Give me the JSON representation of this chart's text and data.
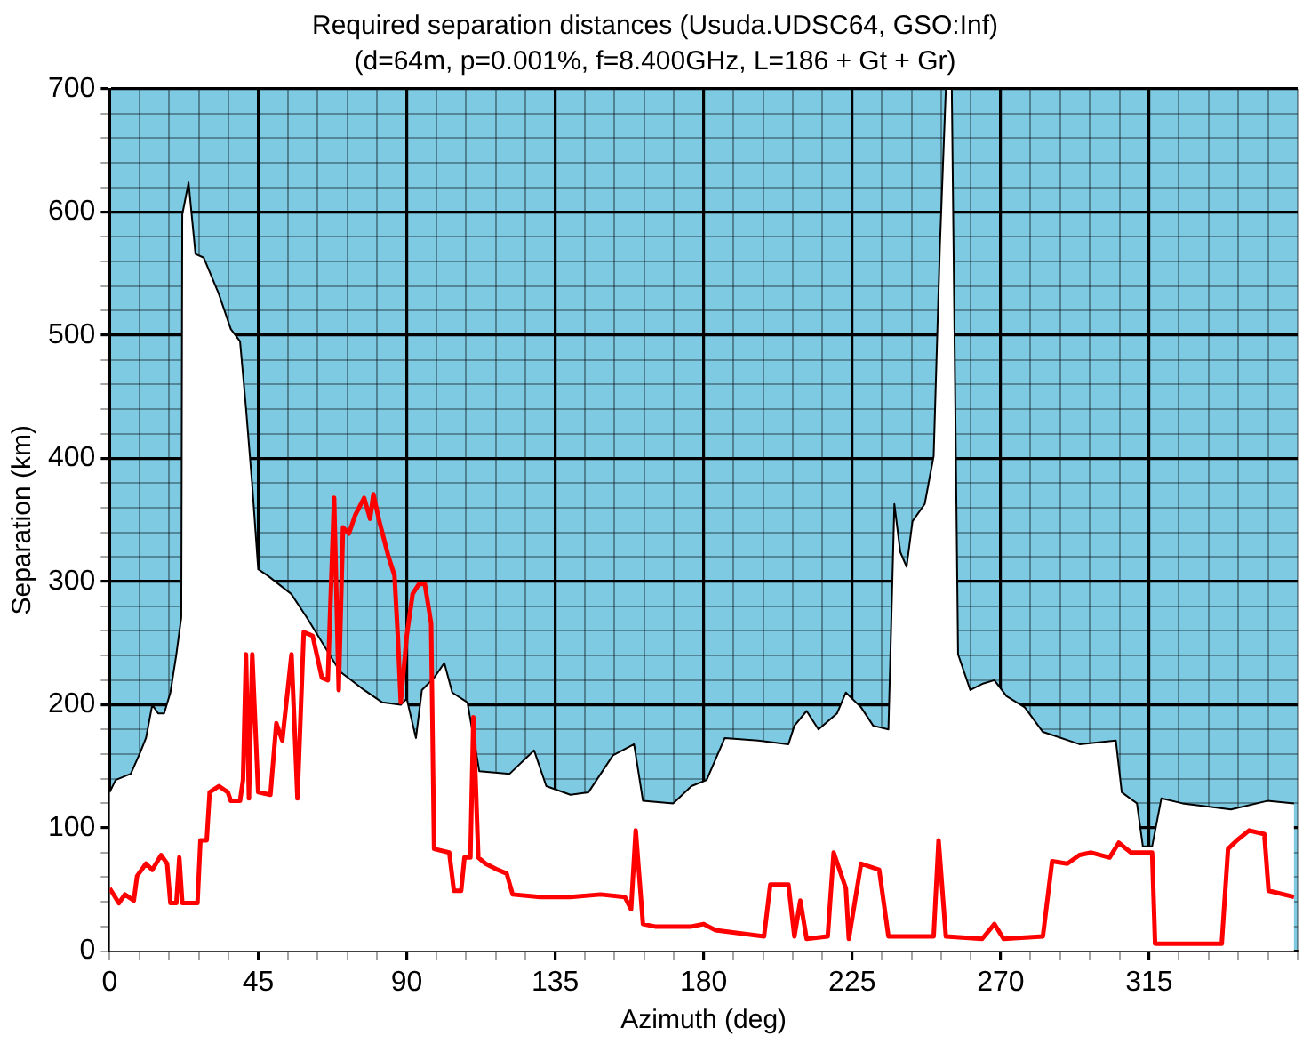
{
  "chart_data": {
    "type": "line",
    "title": "Required separation distances (Usuda.UDSC64, GSO:Inf)",
    "subtitle": "(d=64m, p=0.001%, f=8.400GHz, L=186 + Gt + Gr)",
    "xlabel": "Azimuth (deg)",
    "ylabel": "Separation (km)",
    "xlim": [
      0,
      360
    ],
    "ylim": [
      0,
      700
    ],
    "xticks": [
      0,
      {
        "value": 9,
        "label": null
      },
      {
        "value": 18,
        "label": null
      },
      {
        "value": 27,
        "label": null
      },
      {
        "value": 36,
        "label": null
      },
      45,
      {
        "value": 54,
        "label": null
      },
      {
        "value": 63,
        "label": null
      },
      {
        "value": 72,
        "label": null
      },
      {
        "value": 81,
        "label": null
      },
      90,
      {
        "value": 99,
        "label": null
      },
      {
        "value": 108,
        "label": null
      },
      {
        "value": 117,
        "label": null
      },
      {
        "value": 126,
        "label": null
      },
      135,
      {
        "value": 144,
        "label": null
      },
      {
        "value": 153,
        "label": null
      },
      {
        "value": 162,
        "label": null
      },
      {
        "value": 171,
        "label": null
      },
      180,
      {
        "value": 189,
        "label": null
      },
      {
        "value": 198,
        "label": null
      },
      {
        "value": 207,
        "label": null
      },
      {
        "value": 216,
        "label": null
      },
      225,
      {
        "value": 234,
        "label": null
      },
      {
        "value": 243,
        "label": null
      },
      {
        "value": 252,
        "label": null
      },
      {
        "value": 261,
        "label": null
      },
      270,
      {
        "value": 279,
        "label": null
      },
      {
        "value": 288,
        "label": null
      },
      {
        "value": 297,
        "label": null
      },
      {
        "value": 306,
        "label": null
      },
      315,
      {
        "value": 324,
        "label": null
      },
      {
        "value": 333,
        "label": null
      },
      {
        "value": 342,
        "label": null
      },
      {
        "value": 351,
        "label": null
      },
      {
        "value": 360,
        "label": null
      }
    ],
    "yticks": [
      0,
      {
        "value": 20,
        "label": null
      },
      {
        "value": 40,
        "label": null
      },
      {
        "value": 60,
        "label": null
      },
      {
        "value": 80,
        "label": null
      },
      100,
      {
        "value": 120,
        "label": null
      },
      {
        "value": 140,
        "label": null
      },
      {
        "value": 160,
        "label": null
      },
      {
        "value": 180,
        "label": null
      },
      200,
      {
        "value": 220,
        "label": null
      },
      {
        "value": 240,
        "label": null
      },
      {
        "value": 260,
        "label": null
      },
      {
        "value": 280,
        "label": null
      },
      300,
      {
        "value": 320,
        "label": null
      },
      {
        "value": 340,
        "label": null
      },
      {
        "value": 360,
        "label": null
      },
      {
        "value": 380,
        "label": null
      },
      400,
      {
        "value": 420,
        "label": null
      },
      {
        "value": 440,
        "label": null
      },
      {
        "value": 460,
        "label": null
      },
      {
        "value": 480,
        "label": null
      },
      500,
      {
        "value": 520,
        "label": null
      },
      {
        "value": 540,
        "label": null
      },
      {
        "value": 560,
        "label": null
      },
      {
        "value": 580,
        "label": null
      },
      600,
      {
        "value": 620,
        "label": null
      },
      {
        "value": 640,
        "label": null
      },
      {
        "value": 660,
        "label": null
      },
      {
        "value": 680,
        "label": null
      },
      700
    ],
    "grid": true,
    "marker": "none",
    "bands": [
      {
        "axis": "y",
        "from": 0,
        "to": 700,
        "color": "#7ecae3"
      }
    ],
    "series": [
      {
        "type": "area",
        "color": "#ffffff",
        "x": [
          0,
          1.8,
          6.4,
          9.2,
          11,
          12.9,
          14.7,
          16.5,
          18.4,
          20.2,
          21.7,
          22,
          23.9,
          26,
          28.5,
          33,
          36.7,
          39.5,
          41.3,
          43.2,
          45,
          47.8,
          55,
          59.7,
          69.8,
          77.1,
          82.6,
          88.2,
          90,
          92.8,
          94.6,
          98.3,
          101.4,
          103.8,
          108.4,
          112,
          121.2,
          128.6,
          132.3,
          139.6,
          145.1,
          152.5,
          158.9,
          161.6,
          170.8,
          176.3,
          180.9,
          186.4,
          196.5,
          205.7,
          207.5,
          211.2,
          214.8,
          220.4,
          223.1,
          227.7,
          231.4,
          236,
          237.8,
          239.6,
          241.5,
          243.3,
          247,
          249.7,
          251.6,
          253.4,
          255.2,
          257.1,
          260.8,
          264.4,
          268.1,
          271.8,
          277.3,
          282.8,
          293.9,
          304.9,
          306.7,
          311.3,
          313.1,
          315.9,
          318.7,
          325.1,
          339.8,
          350.8,
          358.9
        ],
        "values": [
          129,
          139,
          144,
          161,
          173,
          200,
          193,
          193,
          210,
          241,
          271,
          598,
          624,
          566,
          563,
          534,
          505,
          495,
          441,
          378,
          310,
          305,
          290,
          271,
          227,
          212,
          202,
          200,
          205,
          173,
          212,
          222,
          234,
          210,
          202,
          146,
          144,
          163,
          134,
          127,
          129,
          159,
          168,
          122,
          120,
          134,
          139,
          173,
          171,
          168,
          183,
          195,
          180,
          193,
          210,
          198,
          183,
          180,
          363,
          324,
          312,
          349,
          363,
          402,
          573,
          700,
          700,
          241,
          212,
          217,
          220,
          207,
          198,
          178,
          168,
          171,
          129,
          120,
          85,
          85,
          124,
          120,
          115,
          122,
          120
        ]
      },
      {
        "type": "line",
        "color": "#ff0000",
        "x": [
          0,
          2.8,
          4.6,
          7.3,
          8.3,
          11,
          12.9,
          15.6,
          17.4,
          18.4,
          20.2,
          21.1,
          22,
          26.6,
          27.5,
          29.4,
          30.3,
          33.1,
          35.8,
          36.7,
          39.5,
          40.4,
          41.3,
          42.2,
          43.2,
          45,
          48.7,
          50.5,
          52.3,
          55.1,
          56.9,
          58.8,
          61.5,
          64.3,
          66.1,
          68,
          69.4,
          70.7,
          72.5,
          74.4,
          77.1,
          78.9,
          79.9,
          81.7,
          84.5,
          86.3,
          87.3,
          88.2,
          90,
          91.8,
          93.7,
          95.5,
          97.4,
          98.3,
          102.9,
          104.3,
          106.5,
          107.5,
          109.3,
          110.2,
          111.7,
          113.9,
          117.6,
          120.3,
          122.1,
          130.4,
          139.6,
          148.8,
          156.1,
          158,
          159.4,
          161.6,
          165.3,
          176.3,
          180,
          183.6,
          198.3,
          200.2,
          205.7,
          207.5,
          209.3,
          211.2,
          217.6,
          219.4,
          223.1,
          224,
          227.7,
          233.2,
          236,
          249.7,
          251.2,
          253.4,
          264.4,
          268.1,
          270.9,
          282.8,
          285.6,
          290.2,
          293.9,
          297.5,
          303,
          305.8,
          309.5,
          315.9,
          316.8,
          337,
          338.9,
          341.6,
          345.3,
          349.9,
          351.2,
          358.9
        ],
        "values": [
          51,
          39,
          46,
          41,
          61,
          71,
          66,
          78,
          71,
          39,
          39,
          76,
          39,
          39,
          90,
          90,
          129,
          134,
          129,
          122,
          122,
          139,
          241,
          124,
          241,
          129,
          127,
          185,
          171,
          241,
          124,
          259,
          256,
          222,
          220,
          368,
          212,
          344,
          339,
          354,
          368,
          351,
          371,
          349,
          320,
          305,
          256,
          202,
          256,
          290,
          298,
          298,
          266,
          83,
          80,
          49,
          49,
          76,
          76,
          190,
          76,
          71,
          66,
          63,
          46,
          44,
          44,
          46,
          44,
          34,
          98,
          22,
          20,
          20,
          22,
          17,
          12,
          54,
          54,
          12,
          41,
          10,
          12,
          80,
          51,
          10,
          71,
          66,
          12,
          12,
          90,
          12,
          10,
          22,
          10,
          12,
          73,
          71,
          78,
          80,
          76,
          88,
          80,
          80,
          6,
          6,
          83,
          90,
          98,
          95,
          49,
          44
        ]
      }
    ]
  }
}
